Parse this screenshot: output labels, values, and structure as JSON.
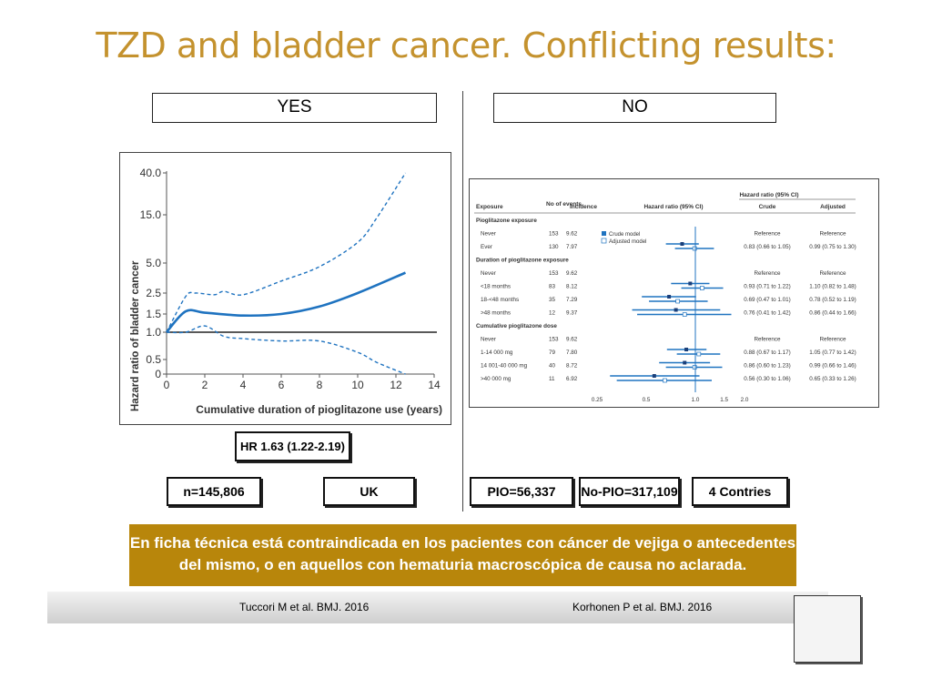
{
  "slide": {
    "title": "TZD and bladder cancer. Conflicting results:",
    "yes_label": "YES",
    "no_label": "NO"
  },
  "left_chart": {
    "type": "line",
    "ylabel": "Hazard ratio of bladder cancer",
    "xlabel": "Cumulative duration of pioglitazone use (years)",
    "y_ticks": [
      "40.0",
      "15.0",
      "5.0",
      "2.5",
      "1.5",
      "1.0",
      "0.5",
      "0"
    ],
    "x_ticks": [
      "0",
      "2",
      "4",
      "6",
      "8",
      "10",
      "12",
      "14"
    ],
    "hr_label": "HR 1.63 (1.22-2.19)"
  },
  "chart_data": {
    "type": "line",
    "xlabel": "Cumulative duration of pioglitazone use (years)",
    "ylabel": "Hazard ratio of bladder cancer",
    "xlim": [
      0,
      14
    ],
    "y_scale": "log",
    "y_ticks": [
      0,
      0.5,
      1.0,
      1.5,
      2.5,
      5.0,
      15.0,
      40.0
    ],
    "reference_line": 1.0,
    "series": [
      {
        "style": "solid",
        "x": [
          0,
          1,
          2,
          4,
          6,
          8,
          10,
          12.5
        ],
        "y": [
          1.0,
          1.6,
          1.55,
          1.45,
          1.5,
          1.8,
          2.5,
          4.0
        ]
      },
      {
        "style": "dashed-upper",
        "x": [
          0,
          1,
          1.5,
          2.5,
          3,
          4,
          6,
          8,
          10,
          11,
          12.5
        ],
        "y": [
          1.0,
          2.3,
          2.5,
          2.4,
          2.6,
          2.4,
          3.3,
          4.6,
          8.0,
          14.0,
          40.0
        ]
      },
      {
        "style": "dashed-lower",
        "x": [
          0,
          1,
          2,
          3,
          4,
          6,
          8,
          10,
          11,
          12.5
        ],
        "y": [
          1.0,
          1.0,
          1.15,
          0.9,
          0.85,
          0.8,
          0.8,
          0.6,
          0.4,
          0.0
        ]
      }
    ]
  },
  "forest": {
    "header": {
      "exposure": "Exposure",
      "events": "No of events",
      "incidence": "Incidence",
      "hr": "Hazard ratio (95% CI)",
      "group": "Hazard ratio (95% CI)",
      "crude": "Crude",
      "adjusted": "Adjusted"
    },
    "legend": {
      "crude": "Crude model",
      "adjusted": "Adjusted model"
    },
    "axis_ticks": [
      "0.25",
      "0.5",
      "1.0",
      "1.5",
      "2.0"
    ],
    "rows": [
      {
        "label": "Pioglitazone exposure",
        "section": true,
        "events": "",
        "incidence": "",
        "crude": "",
        "adjusted": ""
      },
      {
        "label": "Never",
        "events": "153",
        "incidence": "9.62",
        "crude": "Reference",
        "adjusted": "Reference"
      },
      {
        "label": "Ever",
        "events": "130",
        "incidence": "7.97",
        "crude": "0.83 (0.66 to 1.05)",
        "adjusted": "0.99 (0.75 to 1.30)"
      },
      {
        "label": "Duration of pioglitazone exposure",
        "section": true,
        "events": "",
        "incidence": "",
        "crude": "",
        "adjusted": ""
      },
      {
        "label": "Never",
        "events": "153",
        "incidence": "9.62",
        "crude": "Reference",
        "adjusted": "Reference"
      },
      {
        "label": "<18 months",
        "events": "83",
        "incidence": "8.12",
        "crude": "0.93 (0.71 to 1.22)",
        "adjusted": "1.10 (0.82 to 1.48)"
      },
      {
        "label": "18-<48 months",
        "events": "35",
        "incidence": "7.29",
        "crude": "0.69 (0.47 to 1.01)",
        "adjusted": "0.78 (0.52 to 1.19)"
      },
      {
        "label": ">48 months",
        "events": "12",
        "incidence": "9.37",
        "crude": "0.76 (0.41 to 1.42)",
        "adjusted": "0.86 (0.44 to 1.66)"
      },
      {
        "label": "Cumulative pioglitazone dose",
        "section": true,
        "events": "",
        "incidence": "",
        "crude": "",
        "adjusted": ""
      },
      {
        "label": "Never",
        "events": "153",
        "incidence": "9.62",
        "crude": "Reference",
        "adjusted": "Reference"
      },
      {
        "label": "1-14 000 mg",
        "events": "79",
        "incidence": "7.80",
        "crude": "0.88 (0.67 to 1.17)",
        "adjusted": "1.05 (0.77 to 1.42)"
      },
      {
        "label": "14 001-40 000 mg",
        "events": "40",
        "incidence": "8.72",
        "crude": "0.86 (0.60 to 1.23)",
        "adjusted": "0.99 (0.66 to 1.46)"
      },
      {
        "label": ">40 000 mg",
        "events": "11",
        "incidence": "6.92",
        "crude": "0.56 (0.30 to 1.06)",
        "adjusted": "0.65 (0.33 to 1.26)"
      }
    ],
    "estimates": [
      null,
      null,
      {
        "crude": [
          0.83,
          0.66,
          1.05
        ],
        "adjusted": [
          0.99,
          0.75,
          1.3
        ]
      },
      null,
      null,
      {
        "crude": [
          0.93,
          0.71,
          1.22
        ],
        "adjusted": [
          1.1,
          0.82,
          1.48
        ]
      },
      {
        "crude": [
          0.69,
          0.47,
          1.01
        ],
        "adjusted": [
          0.78,
          0.52,
          1.19
        ]
      },
      {
        "crude": [
          0.76,
          0.41,
          1.42
        ],
        "adjusted": [
          0.86,
          0.44,
          1.66
        ]
      },
      null,
      null,
      {
        "crude": [
          0.88,
          0.67,
          1.17
        ],
        "adjusted": [
          1.05,
          0.77,
          1.42
        ]
      },
      {
        "crude": [
          0.86,
          0.6,
          1.23
        ],
        "adjusted": [
          0.99,
          0.66,
          1.46
        ]
      },
      {
        "crude": [
          0.56,
          0.3,
          1.06
        ],
        "adjusted": [
          0.65,
          0.33,
          1.26
        ]
      }
    ]
  },
  "stats": {
    "n": "n=145,806",
    "country": "UK",
    "pio": "PIO=56,337",
    "nopio": "No-PIO=317,109",
    "countries": "4 Contries"
  },
  "banner": {
    "text": "En ficha técnica está contraindicada en los pacientes con cáncer de vejiga o antecedentes del mismo, o en aquellos con hematuria macroscópica de causa no aclarada."
  },
  "footer": {
    "left_citation": "Tuccori M et al. BMJ. 2016",
    "right_citation": "Korhonen P et al. BMJ. 2016"
  },
  "colors": {
    "title": "#c4922e",
    "banner": "#b8860b",
    "line": "#1f73c0"
  }
}
